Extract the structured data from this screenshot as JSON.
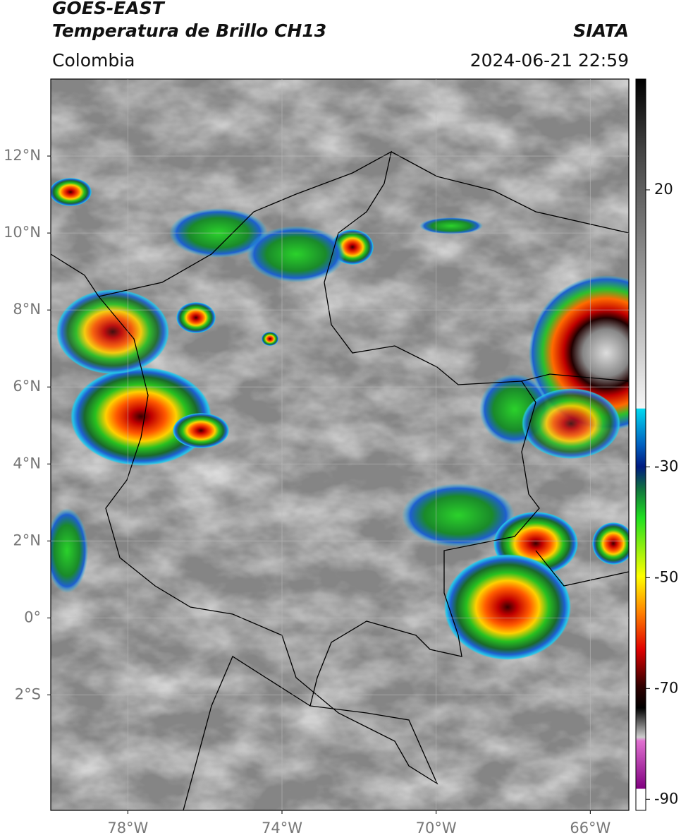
{
  "header": {
    "title": "GOES-EAST",
    "subtitle": "Temperatura de Brillo CH13",
    "source": "SIATA",
    "region": "Colombia",
    "datetime": "2024-06-21 22:59"
  },
  "map": {
    "latlim": [
      -5,
      14
    ],
    "lonlim": [
      -80,
      -65
    ],
    "lat_ticks": [
      {
        "value": 12,
        "label": "12°N"
      },
      {
        "value": 10,
        "label": "10°N"
      },
      {
        "value": 8,
        "label": "8°N"
      },
      {
        "value": 6,
        "label": "6°N"
      },
      {
        "value": 4,
        "label": "4°N"
      },
      {
        "value": 2,
        "label": "2°N"
      },
      {
        "value": 0,
        "label": "0°"
      },
      {
        "value": -2,
        "label": "2°S"
      }
    ],
    "lon_ticks": [
      {
        "value": -78,
        "label": "78°W"
      },
      {
        "value": -74,
        "label": "74°W"
      },
      {
        "value": -70,
        "label": "70°W"
      },
      {
        "value": -66,
        "label": "66°W"
      }
    ]
  },
  "colorbar": {
    "lim": [
      -92,
      40
    ],
    "ticks": [
      20,
      -30,
      -50,
      -70,
      -90
    ]
  }
}
